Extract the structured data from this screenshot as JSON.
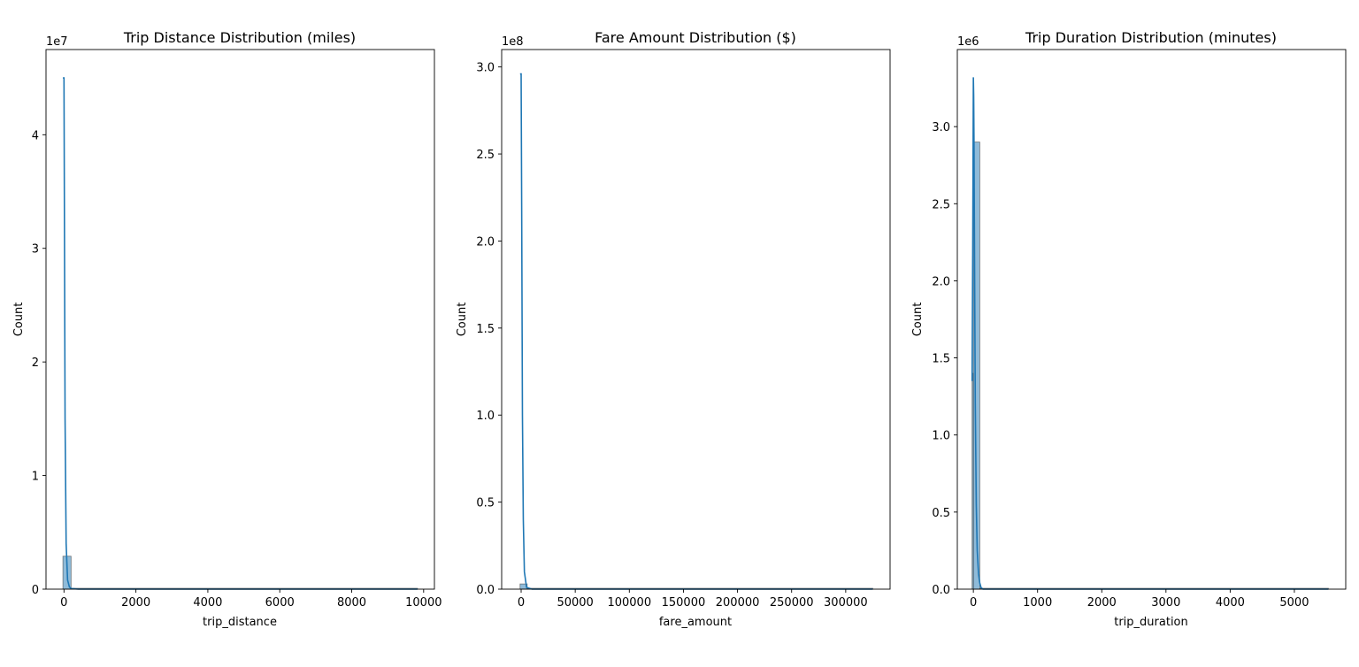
{
  "chart_data": [
    {
      "type": "histogram",
      "title": "Trip Distance Distribution (miles)",
      "xlabel": "trip_distance",
      "ylabel": "Count",
      "y_offset_label": "1e7",
      "y_scale": 10000000,
      "xlim": [
        -500,
        10300
      ],
      "ylim": [
        0,
        4.75
      ],
      "xticks": [
        0,
        2000,
        4000,
        6000,
        8000,
        10000
      ],
      "xtick_labels": [
        "0",
        "2000",
        "4000",
        "6000",
        "8000",
        "10000"
      ],
      "yticks": [
        0,
        1,
        2,
        3,
        4
      ],
      "ytick_labels": [
        "0",
        "1",
        "2",
        "3",
        "4"
      ],
      "bins": [
        {
          "x0": -30,
          "x1": 197,
          "value": 0.29
        },
        {
          "x0": 197,
          "x1": 9830,
          "value": 0.0
        }
      ],
      "kde": {
        "x": [
          -30,
          0,
          10,
          30,
          60,
          100,
          150,
          200,
          400,
          1000,
          3000,
          6000,
          9830
        ],
        "y": [
          4.5,
          4.5,
          3.5,
          1.5,
          0.4,
          0.08,
          0.02,
          0.005,
          0.0,
          0.0,
          0.0,
          0.0,
          0.0
        ]
      },
      "bar_color": "#1f77b4",
      "line_color": "#1f77b4"
    },
    {
      "type": "histogram",
      "title": "Fare Amount Distribution ($)",
      "xlabel": "fare_amount",
      "ylabel": "Count",
      "y_offset_label": "1e8",
      "y_scale": 100000000,
      "xlim": [
        -18000,
        341000
      ],
      "ylim": [
        0,
        3.1
      ],
      "xticks": [
        0,
        50000,
        100000,
        150000,
        200000,
        250000,
        300000
      ],
      "xtick_labels": [
        "0",
        "50000",
        "100000",
        "150000",
        "200000",
        "250000",
        "300000"
      ],
      "yticks": [
        0,
        0.5,
        1.0,
        1.5,
        2.0,
        2.5,
        3.0
      ],
      "ytick_labels": [
        "0.0",
        "0.5",
        "1.0",
        "1.5",
        "2.0",
        "2.5",
        "3.0"
      ],
      "bins": [
        {
          "x0": -1000,
          "x1": 5600,
          "value": 0.03
        },
        {
          "x0": 5600,
          "x1": 325000,
          "value": 0.0
        }
      ],
      "kde": {
        "x": [
          -1000,
          0,
          500,
          1200,
          2000,
          3000,
          5000,
          10000,
          50000,
          150000,
          325000
        ],
        "y": [
          2.96,
          2.96,
          2.2,
          1.0,
          0.4,
          0.1,
          0.01,
          0.0,
          0.0,
          0.0,
          0.0
        ]
      },
      "bar_color": "#1f77b4",
      "line_color": "#1f77b4"
    },
    {
      "type": "histogram",
      "title": "Trip Duration Distribution (minutes)",
      "xlabel": "trip_duration",
      "ylabel": "Count",
      "y_offset_label": "1e6",
      "y_scale": 1000000,
      "xlim": [
        -250,
        5800
      ],
      "ylim": [
        0,
        3.5
      ],
      "xticks": [
        0,
        1000,
        2000,
        3000,
        4000,
        5000
      ],
      "xtick_labels": [
        "0",
        "1000",
        "2000",
        "3000",
        "4000",
        "5000"
      ],
      "yticks": [
        0,
        0.5,
        1.0,
        1.5,
        2.0,
        2.5,
        3.0
      ],
      "ytick_labels": [
        "0.0",
        "0.5",
        "1.0",
        "1.5",
        "2.0",
        "2.5",
        "3.0"
      ],
      "bins": [
        {
          "x0": -20,
          "x1": 0,
          "value": 1.4
        },
        {
          "x0": 0,
          "x1": 100,
          "value": 2.9
        },
        {
          "x0": 100,
          "x1": 5530,
          "value": 0.0
        }
      ],
      "kde": {
        "x": [
          -20,
          -10,
          0,
          5,
          10,
          20,
          30,
          45,
          60,
          80,
          100,
          120,
          150,
          200,
          500,
          1000,
          3000,
          5530
        ],
        "y": [
          1.35,
          2.2,
          3.32,
          3.2,
          2.9,
          2.0,
          1.2,
          0.55,
          0.25,
          0.1,
          0.04,
          0.01,
          0.0,
          0.0,
          0.0,
          0.0,
          0.0,
          0.0
        ]
      },
      "bar_color": "#1f77b4",
      "line_color": "#1f77b4"
    }
  ]
}
